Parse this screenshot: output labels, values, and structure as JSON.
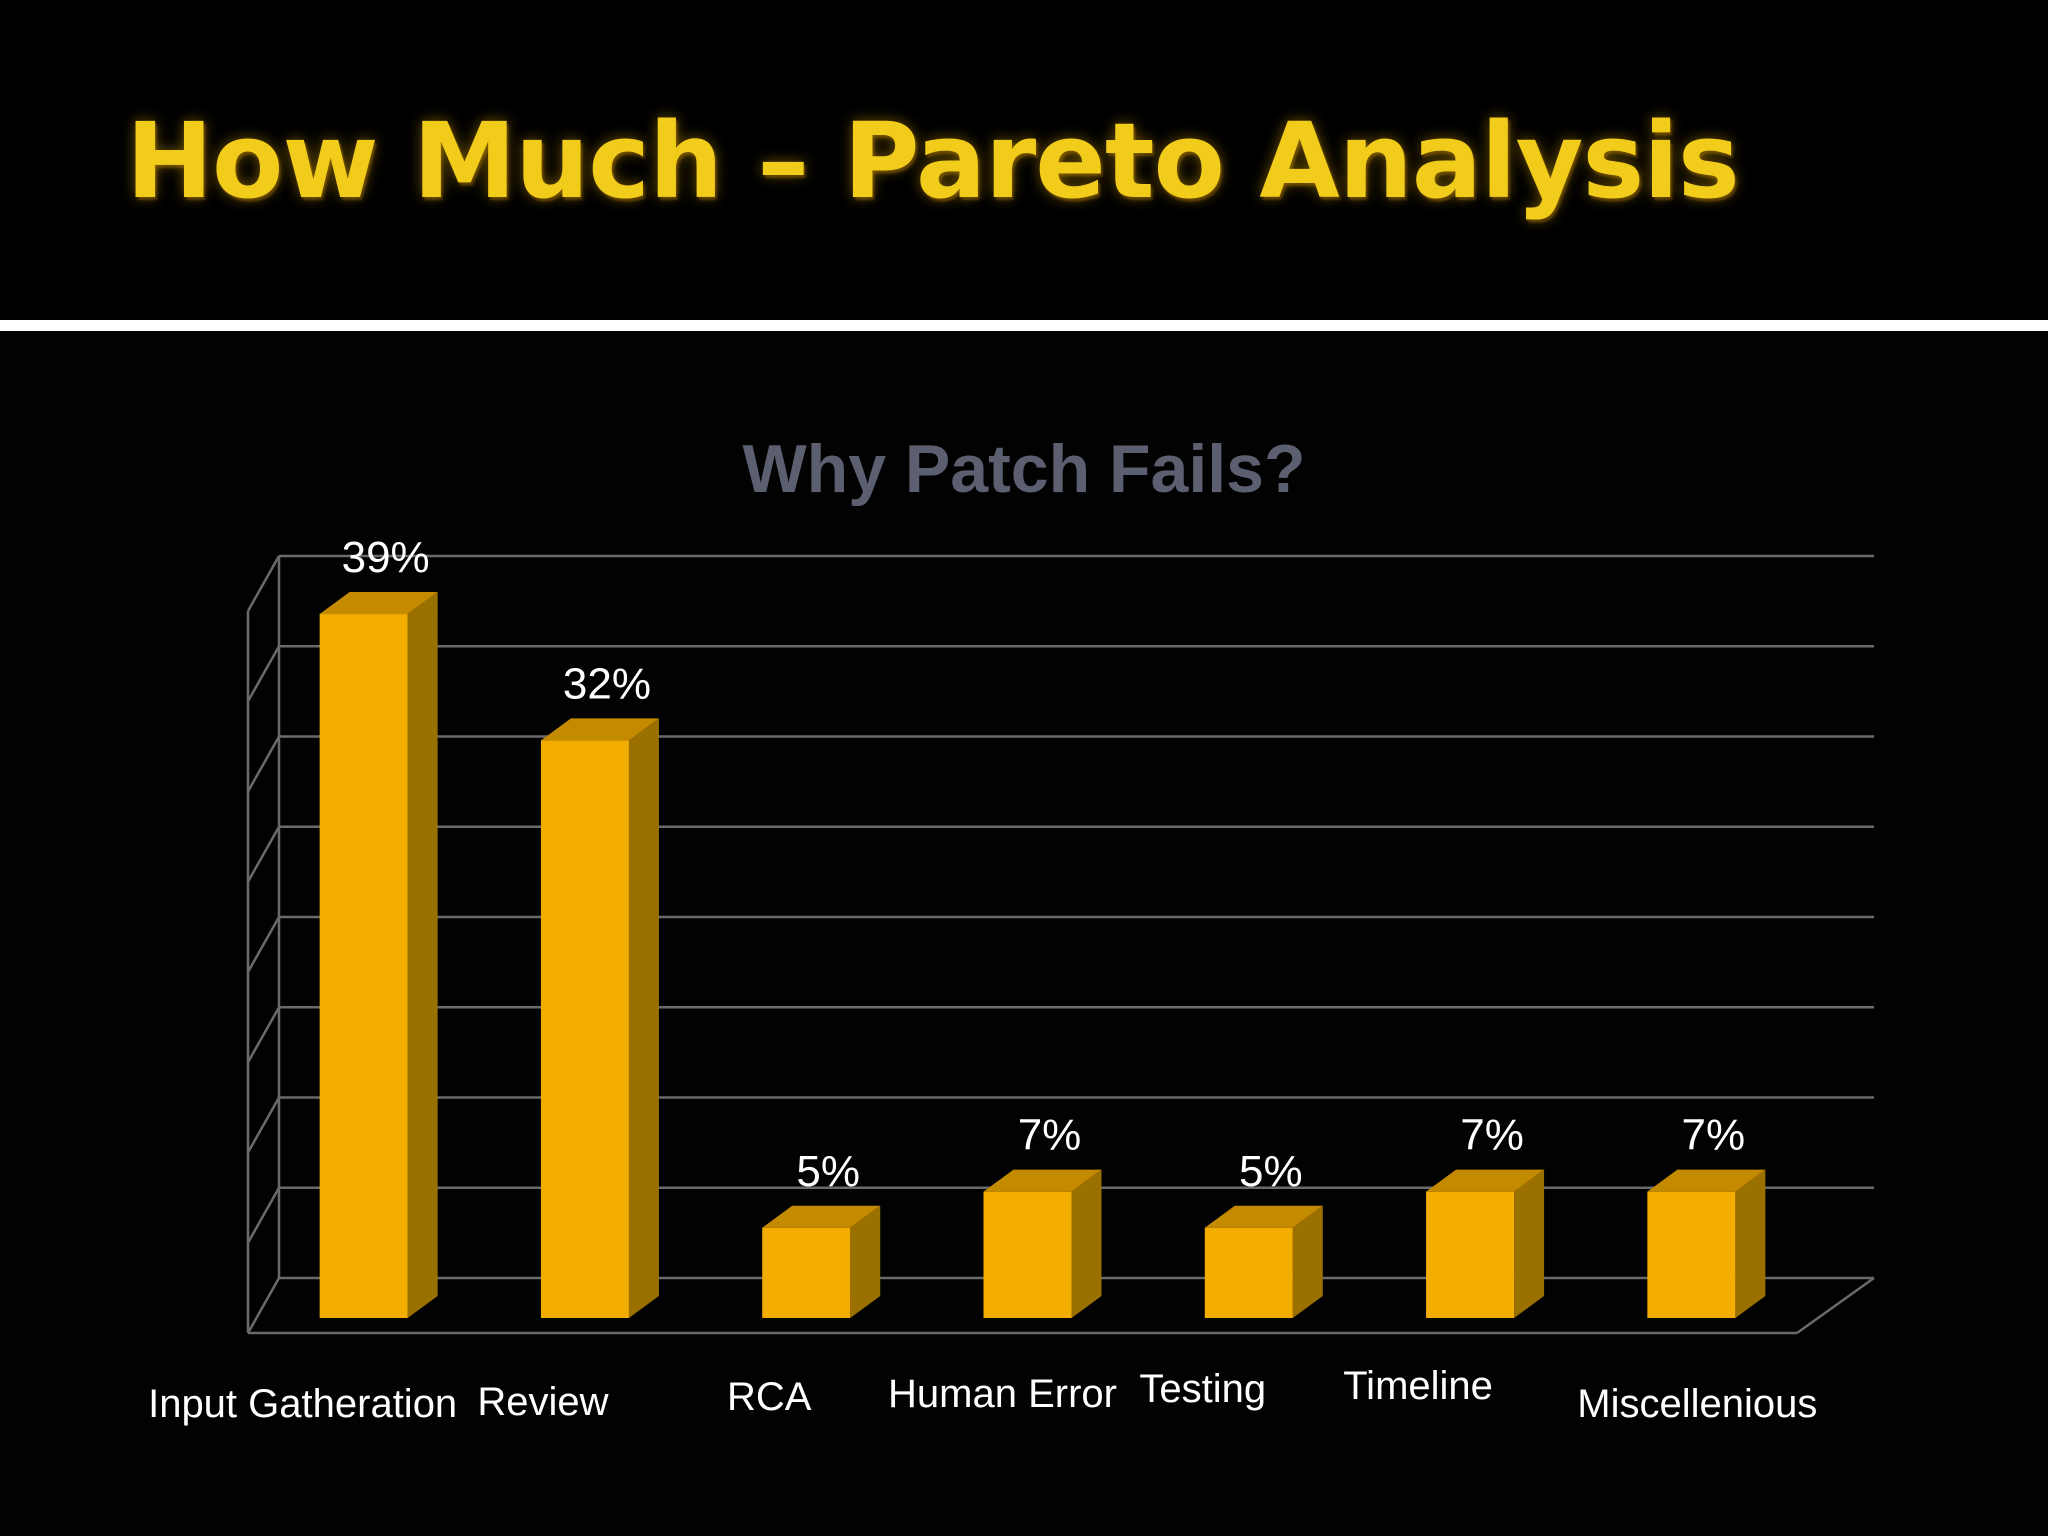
{
  "slide": {
    "title": "How Much – Pareto Analysis"
  },
  "colors": {
    "background": "#020203",
    "title": "#f2cc1a",
    "chart_title": "#5b5f70",
    "bar_front": "#f2ad00",
    "bar_top": "#c48a00",
    "bar_side": "#9a7000",
    "gridline": "#6a6a6a",
    "label_text": "#ffffff"
  },
  "chart_data": {
    "type": "bar",
    "title": "Why Patch Fails?",
    "categories": [
      "Input Gatheration",
      "Review",
      "RCA",
      "Human Error",
      "Testing",
      "Timeline",
      "Miscellenious"
    ],
    "values": [
      39,
      32,
      5,
      7,
      5,
      7,
      7
    ],
    "data_labels": [
      "39%",
      "32%",
      "5%",
      "7%",
      "5%",
      "7%",
      "7%"
    ],
    "ylim": [
      0,
      40
    ],
    "grid": true,
    "style": "3d-columns",
    "legend": "none"
  }
}
